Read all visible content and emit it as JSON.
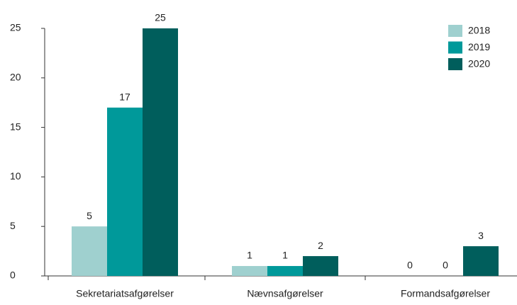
{
  "chart_data": {
    "type": "bar",
    "categories": [
      "Sekretariatsafgørelser",
      "Nævnsafgørelser",
      "Formandsafgørelser"
    ],
    "series": [
      {
        "name": "2018",
        "color": "#9fd0cf",
        "values": [
          5,
          1,
          0
        ]
      },
      {
        "name": "2019",
        "color": "#00999a",
        "values": [
          17,
          1,
          0
        ]
      },
      {
        "name": "2020",
        "color": "#005e5c",
        "values": [
          25,
          2,
          3
        ]
      }
    ],
    "ylim": [
      0,
      25
    ],
    "yticks": [
      0,
      5,
      10,
      15,
      20,
      25
    ],
    "legend": "top-right"
  }
}
